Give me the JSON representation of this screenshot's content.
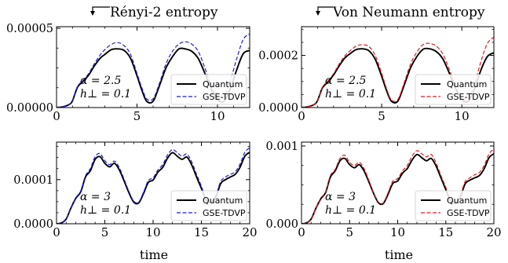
{
  "column_titles": [
    "Rényi-2 entropy",
    "Von Neumann entropy"
  ],
  "xlabel": "time",
  "legend": {
    "quantum": "Quantum",
    "gse": "GSE-TDVP"
  },
  "colors": {
    "quantum": "#000000",
    "gse_left": "#1f1fd8",
    "gse_right": "#e01b24"
  },
  "chart_data": [
    {
      "type": "line",
      "panel": "top-left",
      "xlim": [
        0,
        12
      ],
      "ylim": [
        0,
        5.1e-05
      ],
      "xticks": [
        0,
        5,
        10
      ],
      "yticks": [
        0,
        5e-05
      ],
      "ytick_labels": [
        "0.00000",
        "0.00005"
      ],
      "annotation": [
        "α = 2.5",
        "h⊥ = 0.1"
      ],
      "legend_position": "lower-right",
      "series": [
        {
          "name": "Quantum",
          "style": "solid",
          "x": [
            0,
            0.4,
            0.8,
            1.0,
            1.3,
            1.6,
            2.0,
            2.3,
            2.7,
            3.0,
            3.4,
            3.8,
            4.2,
            4.6,
            5.0,
            5.3,
            5.6,
            6.0,
            6.4,
            6.8,
            7.2,
            7.6,
            8.0,
            8.4,
            8.8,
            9.2,
            9.6,
            10.0,
            10.4,
            10.8,
            11.2,
            11.6,
            12.0
          ],
          "y": [
            0,
            5e-07,
            2e-06,
            4.5e-06,
            1.28e-05,
            1.6e-05,
            2.05e-05,
            2.55e-05,
            3.1e-05,
            3.35e-05,
            3.65e-05,
            3.7e-05,
            3.6e-05,
            3.1e-05,
            2e-05,
            1.1e-05,
            4e-06,
            4e-06,
            1.4e-05,
            2.5e-05,
            3.2e-05,
            3.7e-05,
            3.7e-05,
            3.55e-05,
            3.1e-05,
            2.2e-05,
            1.2e-05,
            5e-06,
            4e-06,
            1.2e-05,
            2.4e-05,
            3.4e-05,
            3.6e-05
          ]
        },
        {
          "name": "GSE-TDVP",
          "style": "dashed",
          "x": [
            0,
            0.4,
            0.8,
            1.0,
            1.3,
            1.6,
            2.0,
            2.3,
            2.7,
            3.0,
            3.4,
            3.8,
            4.2,
            4.6,
            5.0,
            5.3,
            5.6,
            6.0,
            6.4,
            6.8,
            7.2,
            7.6,
            8.0,
            8.4,
            8.8,
            9.2,
            9.6,
            10.0,
            10.4,
            10.8,
            11.2,
            11.6,
            12.0
          ],
          "y": [
            0,
            5e-07,
            2e-06,
            4.5e-06,
            1.33e-05,
            1.66e-05,
            2.15e-05,
            2.68e-05,
            3.3e-05,
            3.65e-05,
            3.98e-05,
            4.1e-05,
            3.9e-05,
            3.35e-05,
            2.15e-05,
            1.25e-05,
            5.5e-06,
            5.5e-06,
            1.55e-05,
            2.75e-05,
            3.55e-05,
            4e-05,
            4.15e-05,
            4e-05,
            3.55e-05,
            2.55e-05,
            1.4e-05,
            7e-06,
            7e-06,
            1.7e-05,
            3.1e-05,
            4.3e-05,
            4.65e-05
          ]
        }
      ]
    },
    {
      "type": "line",
      "panel": "top-right",
      "xlim": [
        0,
        12
      ],
      "ylim": [
        0,
        0.00031
      ],
      "xticks": [
        0,
        5,
        10
      ],
      "yticks": [
        0,
        0.0002
      ],
      "ytick_labels": [
        "0.0000",
        "0.0002"
      ],
      "annotation": [
        "α = 2.5",
        "h⊥ = 0.1"
      ],
      "legend_position": "lower-right",
      "series": [
        {
          "name": "Quantum",
          "style": "solid",
          "x": [
            0,
            0.4,
            0.8,
            1.0,
            1.3,
            1.6,
            2.0,
            2.3,
            2.7,
            3.0,
            3.4,
            3.8,
            4.2,
            4.6,
            5.0,
            5.3,
            5.6,
            6.0,
            6.4,
            6.8,
            7.2,
            7.6,
            8.0,
            8.4,
            8.8,
            9.2,
            9.6,
            10.0,
            10.4,
            10.8,
            11.2,
            11.6,
            12.0
          ],
          "y": [
            0,
            3e-06,
            1.2e-05,
            2.7e-05,
            7.5e-05,
            9.5e-05,
            0.000125,
            0.000155,
            0.00019,
            0.000205,
            0.000222,
            0.000225,
            0.000218,
            0.000185,
            0.00012,
            6.6e-05,
            2.5e-05,
            2.4e-05,
            8.5e-05,
            0.000152,
            0.000196,
            0.000224,
            0.000225,
            0.000215,
            0.000188,
            0.000135,
            7.4e-05,
            3e-05,
            2.4e-05,
            7.2e-05,
            0.000145,
            0.000196,
            0.00021
          ]
        },
        {
          "name": "GSE-TDVP",
          "style": "dashed",
          "x": [
            0,
            0.4,
            0.8,
            1.0,
            1.3,
            1.6,
            2.0,
            2.3,
            2.7,
            3.0,
            3.4,
            3.8,
            4.2,
            4.6,
            5.0,
            5.3,
            5.6,
            6.0,
            6.4,
            6.8,
            7.2,
            7.6,
            8.0,
            8.4,
            8.8,
            9.2,
            9.6,
            10.0,
            10.4,
            10.8,
            11.2,
            11.6,
            12.0
          ],
          "y": [
            0,
            3e-06,
            1.2e-05,
            2.7e-05,
            7.8e-05,
            9.9e-05,
            0.00013,
            0.000162,
            0.000198,
            0.000216,
            0.000235,
            0.000241,
            0.000234,
            0.0002,
            0.000131,
            7.4e-05,
            3e-05,
            3e-05,
            9.4e-05,
            0.000166,
            0.000213,
            0.000242,
            0.000246,
            0.000236,
            0.000207,
            0.00015,
            8.4e-05,
            3.8e-05,
            3.4e-05,
            9.2e-05,
            0.000178,
            0.000246,
            0.00027
          ]
        }
      ]
    },
    {
      "type": "line",
      "panel": "bottom-left",
      "xlim": [
        0,
        20
      ],
      "ylim": [
        0,
        0.000185
      ],
      "xticks": [
        0,
        5,
        10,
        15,
        20
      ],
      "yticks": [
        0,
        0.0001
      ],
      "ytick_labels": [
        "0.0000",
        "0.0001"
      ],
      "annotation": [
        "α = 3",
        "h⊥ = 0.1"
      ],
      "legend_position": "lower-right",
      "series": [
        {
          "name": "Quantum",
          "style": "solid",
          "x": [
            0,
            0.5,
            1.0,
            1.5,
            2.0,
            2.5,
            3.0,
            3.5,
            4.0,
            4.5,
            5.0,
            5.5,
            6.0,
            6.5,
            7.0,
            7.5,
            8.0,
            8.5,
            9.0,
            9.5,
            10.0,
            10.5,
            11.0,
            11.5,
            12.0,
            12.5,
            13.0,
            13.5,
            14.0,
            14.5,
            15.0,
            15.5,
            16.0,
            16.5,
            17.0,
            17.5,
            18.0,
            18.5,
            19.0,
            19.5,
            20.0
          ],
          "y": [
            0,
            1.8e-06,
            1.08e-05,
            3.6e-05,
            5.8e-05,
            7.2e-05,
            0.000106,
            0.00012,
            0.000146,
            0.000152,
            0.000137,
            0.000129,
            0.000137,
            0.000122,
            9.7e-05,
            7e-05,
            4.9e-05,
            4.7e-05,
            6.8e-05,
            9.35e-05,
            9.9e-05,
            0.000117,
            0.000128,
            0.000149,
            0.000161,
            0.000153,
            0.000146,
            0.000151,
            0.000133,
            0.000106,
            8e-05,
            5.3e-05,
            4.9e-05,
            6.1e-05,
            9.1e-05,
            0.0001,
            0.000106,
            0.000112,
            0.000128,
            0.000153,
            0.000162
          ]
        },
        {
          "name": "GSE-TDVP",
          "style": "dashed",
          "x": [
            0,
            0.5,
            1.0,
            1.5,
            2.0,
            2.5,
            3.0,
            3.5,
            4.0,
            4.5,
            5.0,
            5.5,
            6.0,
            6.5,
            7.0,
            7.5,
            8.0,
            8.5,
            9.0,
            9.5,
            10.0,
            10.5,
            11.0,
            11.5,
            12.0,
            12.5,
            13.0,
            13.5,
            14.0,
            14.5,
            15.0,
            15.5,
            16.0,
            16.5,
            17.0,
            17.5,
            18.0,
            18.5,
            19.0,
            19.5,
            20.0
          ],
          "y": [
            0,
            1.8e-06,
            1.08e-05,
            3.6e-05,
            5.9e-05,
            7.4e-05,
            0.000109,
            0.000125,
            0.000152,
            0.000159,
            0.000143,
            0.000134,
            0.000142,
            0.000127,
            0.000101,
            7.3e-05,
            5.1e-05,
            4.9e-05,
            7.1e-05,
            9.8e-05,
            0.000104,
            0.000122,
            0.000134,
            0.000156,
            0.000168,
            0.000161,
            0.000153,
            0.000158,
            0.00014,
            0.000112,
            8.5e-05,
            5.6e-05,
            5.1e-05,
            6.5e-05,
            9.6e-05,
            0.000106,
            0.000112,
            0.000118,
            0.000135,
            0.000162,
            0.000172
          ]
        }
      ]
    },
    {
      "type": "line",
      "panel": "bottom-right",
      "xlim": [
        0,
        20
      ],
      "ylim": [
        0,
        0.00105
      ],
      "xticks": [
        0,
        5,
        10,
        15,
        20
      ],
      "yticks": [
        0,
        0.001
      ],
      "ytick_labels": [
        "0.000",
        "0.001"
      ],
      "annotation": [
        "α = 3",
        "h⊥ = 0.1"
      ],
      "legend_position": "lower-right",
      "series": [
        {
          "name": "Quantum",
          "style": "solid",
          "x": [
            0,
            0.5,
            1.0,
            1.5,
            2.0,
            2.5,
            3.0,
            3.5,
            4.0,
            4.5,
            5.0,
            5.5,
            6.0,
            6.5,
            7.0,
            7.5,
            8.0,
            8.5,
            9.0,
            9.5,
            10.0,
            10.5,
            11.0,
            11.5,
            12.0,
            12.5,
            13.0,
            13.5,
            14.0,
            14.5,
            15.0,
            15.5,
            16.0,
            16.5,
            17.0,
            17.5,
            18.0,
            18.5,
            19.0,
            19.5,
            20.0
          ],
          "y": [
            0,
            1e-05,
            6e-05,
            0.0002,
            0.00032,
            0.0004,
            0.0006,
            0.00068,
            0.00081,
            0.00084,
            0.00076,
            0.00072,
            0.00076,
            0.00068,
            0.00054,
            0.00039,
            0.00027,
            0.00026,
            0.00038,
            0.00052,
            0.00055,
            0.00065,
            0.00071,
            0.00082,
            0.00089,
            0.00085,
            0.00081,
            0.00084,
            0.00074,
            0.00059,
            0.00044,
            0.00029,
            0.00027,
            0.00034,
            0.00051,
            0.00056,
            0.00059,
            0.00062,
            0.00071,
            0.00085,
            0.0009
          ]
        },
        {
          "name": "GSE-TDVP",
          "style": "dashed",
          "x": [
            0,
            0.5,
            1.0,
            1.5,
            2.0,
            2.5,
            3.0,
            3.5,
            4.0,
            4.5,
            5.0,
            5.5,
            6.0,
            6.5,
            7.0,
            7.5,
            8.0,
            8.5,
            9.0,
            9.5,
            10.0,
            10.5,
            11.0,
            11.5,
            12.0,
            12.5,
            13.0,
            13.5,
            14.0,
            14.5,
            15.0,
            15.5,
            16.0,
            16.5,
            17.0,
            17.5,
            18.0,
            18.5,
            19.0,
            19.5,
            20.0
          ],
          "y": [
            0,
            1e-05,
            6e-05,
            0.0002,
            0.00033,
            0.00041,
            0.00062,
            0.0007,
            0.00084,
            0.00088,
            0.00079,
            0.00075,
            0.00079,
            0.00071,
            0.00056,
            0.0004,
            0.00028,
            0.00027,
            0.0004,
            0.00055,
            0.00058,
            0.00068,
            0.00075,
            0.00087,
            0.00094,
            0.0009,
            0.00086,
            0.00089,
            0.00078,
            0.00062,
            0.00047,
            0.00031,
            0.00029,
            0.00036,
            0.00054,
            0.00059,
            0.00063,
            0.00066,
            0.00075,
            0.0009,
            0.00096
          ]
        }
      ]
    }
  ]
}
